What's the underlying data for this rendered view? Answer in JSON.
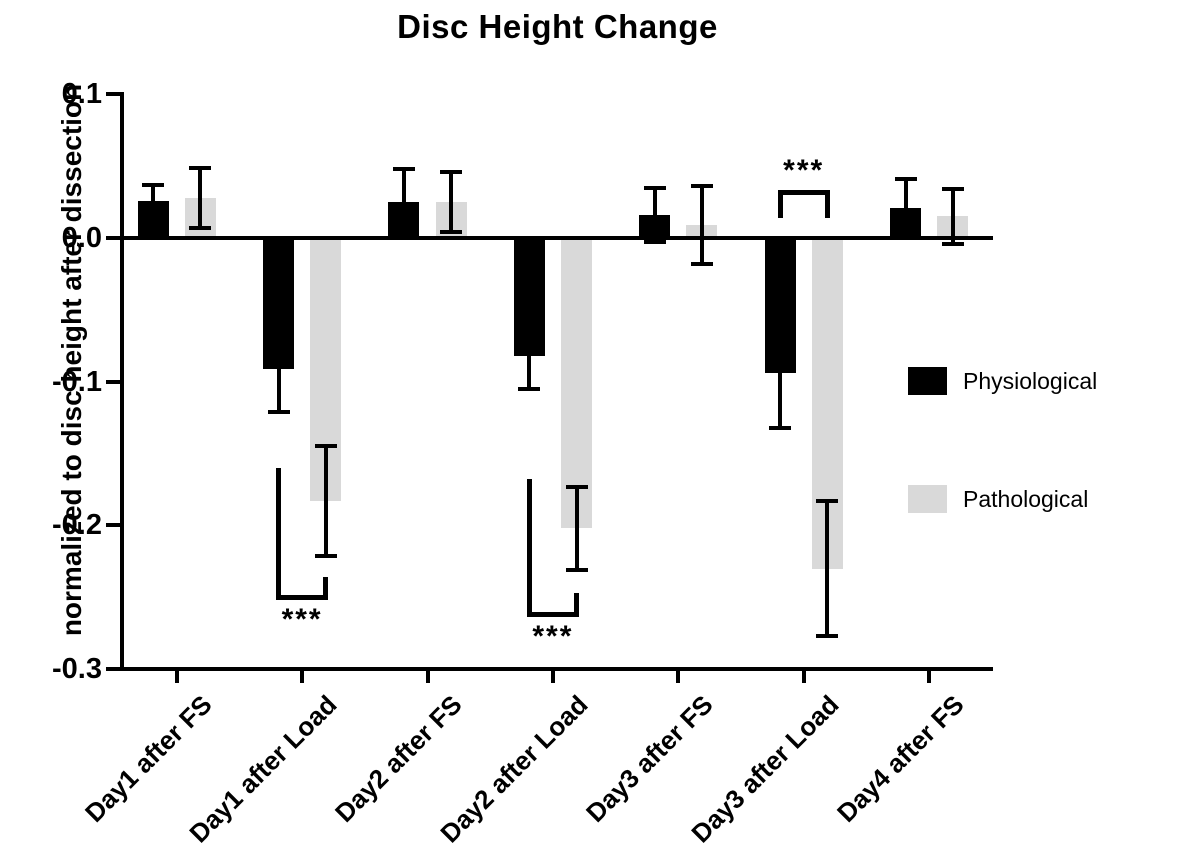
{
  "chart_data": {
    "type": "bar",
    "title": "Disc Height Change",
    "ylabel": "normalized to disc height after dissection",
    "xlabel": "",
    "categories": [
      "Day1 after FS",
      "Day1 after Load",
      "Day2 after FS",
      "Day2 after Load",
      "Day3 after FS",
      "Day3 after Load",
      "Day4 after FS"
    ],
    "ylim": [
      -0.3,
      0.1
    ],
    "yticks": [
      {
        "value": 0.1,
        "label": "0.1"
      },
      {
        "value": 0.0,
        "label": "0.0"
      },
      {
        "value": -0.1,
        "label": "-0.1"
      },
      {
        "value": -0.2,
        "label": "-0.2"
      },
      {
        "value": -0.3,
        "label": "-0.3"
      }
    ],
    "grid": false,
    "legend_position": "right",
    "series": [
      {
        "name": "Physiological",
        "color": "#000000",
        "values": [
          0.026,
          -0.091,
          0.025,
          -0.082,
          0.016,
          -0.094,
          0.021
        ],
        "errors": [
          0.011,
          0.03,
          0.023,
          0.023,
          0.019,
          0.038,
          0.02
        ]
      },
      {
        "name": "Pathological",
        "color": "#d9d9d9",
        "values": [
          0.028,
          -0.183,
          0.025,
          -0.202,
          0.009,
          -0.23,
          0.015
        ],
        "errors": [
          0.021,
          0.038,
          0.021,
          0.029,
          0.027,
          0.047,
          0.019
        ]
      }
    ],
    "significance_brackets": [
      {
        "category_index": 1,
        "label": "***",
        "placement": "below",
        "arm_left_end": -0.16,
        "bar_level": -0.25,
        "arm_right_end": -0.236
      },
      {
        "category_index": 3,
        "label": "***",
        "placement": "below",
        "arm_left_end": -0.168,
        "bar_level": -0.262,
        "arm_right_end": -0.247
      },
      {
        "category_index": 5,
        "label": "***",
        "placement": "above",
        "arm_left_end": 0.014,
        "bar_level": 0.032,
        "arm_right_end": 0.014
      }
    ]
  }
}
